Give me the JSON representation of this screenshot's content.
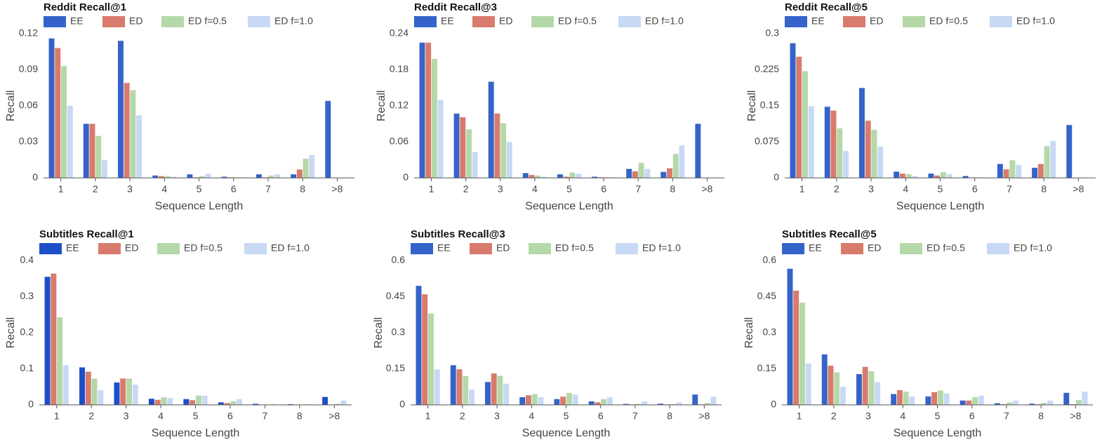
{
  "chart_data": [
    {
      "type": "bar",
      "title": "Reddit Recall@1",
      "xlabel": "Sequence Length",
      "ylabel": "Recall",
      "ylim": [
        0,
        0.12
      ],
      "yticks": [
        "0",
        "0.03",
        "0.06",
        "0.09",
        "0.12"
      ],
      "categories": [
        "1",
        "2",
        "3",
        "4",
        "5",
        "6",
        "7",
        "8",
        ">8"
      ],
      "legend": "top",
      "series": [
        {
          "name": "EE",
          "color": "#3563c9",
          "values": [
            0.116,
            0.045,
            0.114,
            0.002,
            0.003,
            0.001,
            0.003,
            0.003,
            0.064
          ]
        },
        {
          "name": "ED",
          "color": "#d97b6c",
          "values": [
            0.108,
            0.045,
            0.079,
            0.0015,
            0.0005,
            0.0005,
            0.0005,
            0.007,
            0
          ]
        },
        {
          "name": "ED f=0.5",
          "color": "#b5d8a8",
          "values": [
            0.093,
            0.035,
            0.073,
            0.0015,
            0.0015,
            0.0005,
            0.002,
            0.016,
            0
          ]
        },
        {
          "name": "ED f=1.0",
          "color": "#c8d9f5",
          "values": [
            0.06,
            0.015,
            0.052,
            0.001,
            0.0035,
            0.0005,
            0.003,
            0.019,
            0
          ]
        }
      ]
    },
    {
      "type": "bar",
      "title": "Reddit Recall@3",
      "xlabel": "Sequence Length",
      "ylabel": "Recall",
      "ylim": [
        0,
        0.24
      ],
      "yticks": [
        "0",
        "0.06",
        "0.12",
        "0.18",
        "0.24"
      ],
      "categories": [
        "1",
        "2",
        "3",
        "4",
        "5",
        "6",
        "7",
        "8",
        ">8"
      ],
      "legend": "top",
      "series": [
        {
          "name": "EE",
          "color": "#3563c9",
          "values": [
            0.225,
            0.107,
            0.16,
            0.008,
            0.006,
            0.002,
            0.015,
            0.01,
            0.09
          ]
        },
        {
          "name": "ED",
          "color": "#d97b6c",
          "values": [
            0.225,
            0.101,
            0.107,
            0.005,
            0.002,
            0.001,
            0.011,
            0.016,
            0
          ]
        },
        {
          "name": "ED f=0.5",
          "color": "#b5d8a8",
          "values": [
            0.198,
            0.081,
            0.091,
            0.004,
            0.009,
            0.001,
            0.025,
            0.04,
            0
          ]
        },
        {
          "name": "ED f=1.0",
          "color": "#c8d9f5",
          "values": [
            0.13,
            0.043,
            0.06,
            0.002,
            0.007,
            0.001,
            0.015,
            0.054,
            0
          ]
        }
      ]
    },
    {
      "type": "bar",
      "title": "Reddit Recall@5",
      "xlabel": "Sequence Length",
      "ylabel": "Recall",
      "ylim": [
        0,
        0.3
      ],
      "yticks": [
        "0",
        "0.075",
        "0.15",
        "0.225",
        "0.3"
      ],
      "categories": [
        "1",
        "2",
        "3",
        "4",
        "5",
        "6",
        "7",
        "8",
        ">8"
      ],
      "legend": "top",
      "series": [
        {
          "name": "EE",
          "color": "#3563c9",
          "values": [
            0.28,
            0.148,
            0.187,
            0.013,
            0.009,
            0.004,
            0.029,
            0.021,
            0.11
          ]
        },
        {
          "name": "ED",
          "color": "#d97b6c",
          "values": [
            0.252,
            0.14,
            0.119,
            0.009,
            0.005,
            0.001,
            0.018,
            0.029,
            0
          ]
        },
        {
          "name": "ED f=0.5",
          "color": "#b5d8a8",
          "values": [
            0.222,
            0.103,
            0.1,
            0.008,
            0.012,
            0.001,
            0.037,
            0.066,
            0
          ]
        },
        {
          "name": "ED f=1.0",
          "color": "#c8d9f5",
          "values": [
            0.149,
            0.056,
            0.065,
            0.004,
            0.008,
            0.001,
            0.027,
            0.077,
            0
          ]
        }
      ]
    },
    {
      "type": "bar",
      "title": "Subtitles Recall@1",
      "xlabel": "Sequence Length",
      "ylabel": "Recall",
      "ylim": [
        0,
        0.4
      ],
      "yticks": [
        "0",
        "0.1",
        "0.2",
        "0.3",
        "0.4"
      ],
      "categories": [
        "1",
        "2",
        "3",
        "4",
        "5",
        "6",
        "7",
        "8",
        ">8"
      ],
      "legend": "top",
      "series": [
        {
          "name": "EE",
          "color": "#1d50c8",
          "values": [
            0.355,
            0.104,
            0.062,
            0.017,
            0.016,
            0.007,
            0.003,
            0.002,
            0.022
          ]
        },
        {
          "name": "ED",
          "color": "#d97b6c",
          "values": [
            0.364,
            0.092,
            0.073,
            0.014,
            0.013,
            0.005,
            0.001,
            0.001,
            0.001
          ]
        },
        {
          "name": "ED f=0.5",
          "color": "#b5d8a8",
          "values": [
            0.243,
            0.073,
            0.073,
            0.021,
            0.026,
            0.01,
            0.001,
            0.001,
            0.003
          ]
        },
        {
          "name": "ED f=1.0",
          "color": "#c8d9f5",
          "values": [
            0.11,
            0.041,
            0.056,
            0.019,
            0.025,
            0.016,
            0.002,
            0.002,
            0.012
          ]
        }
      ]
    },
    {
      "type": "bar",
      "title": "Subtitles Recall@3",
      "xlabel": "Sequence Length",
      "ylabel": "Recall",
      "ylim": [
        0,
        0.6
      ],
      "yticks": [
        "0",
        "0.15",
        "0.3",
        "0.45",
        "0.6"
      ],
      "categories": [
        "1",
        "2",
        "3",
        "4",
        "5",
        "6",
        "7",
        "8",
        ">8"
      ],
      "legend": "top",
      "series": [
        {
          "name": "EE",
          "color": "#3563c9",
          "values": [
            0.495,
            0.165,
            0.095,
            0.032,
            0.024,
            0.015,
            0.004,
            0.005,
            0.043
          ]
        },
        {
          "name": "ED",
          "color": "#d97b6c",
          "values": [
            0.46,
            0.148,
            0.131,
            0.04,
            0.034,
            0.011,
            0.002,
            0.002,
            0.002
          ]
        },
        {
          "name": "ED f=0.5",
          "color": "#b5d8a8",
          "values": [
            0.38,
            0.12,
            0.121,
            0.045,
            0.05,
            0.024,
            0.004,
            0.003,
            0.008
          ]
        },
        {
          "name": "ED f=1.0",
          "color": "#c8d9f5",
          "values": [
            0.148,
            0.063,
            0.088,
            0.032,
            0.042,
            0.031,
            0.014,
            0.01,
            0.034
          ]
        }
      ]
    },
    {
      "type": "bar",
      "title": "Subtitles Recall@5",
      "xlabel": "Sequence Length",
      "ylabel": "Recall",
      "ylim": [
        0,
        0.6
      ],
      "yticks": [
        "0",
        "0.15",
        "0.3",
        "0.45",
        "0.6"
      ],
      "categories": [
        "1",
        "2",
        "3",
        "4",
        "5",
        "6",
        "7",
        "8",
        ">8"
      ],
      "legend": "top",
      "series": [
        {
          "name": "EE",
          "color": "#3563c9",
          "values": [
            0.566,
            0.21,
            0.128,
            0.045,
            0.035,
            0.018,
            0.007,
            0.005,
            0.05
          ]
        },
        {
          "name": "ED",
          "color": "#d97b6c",
          "values": [
            0.475,
            0.163,
            0.158,
            0.061,
            0.053,
            0.018,
            0.003,
            0.003,
            0.003
          ]
        },
        {
          "name": "ED f=0.5",
          "color": "#b5d8a8",
          "values": [
            0.425,
            0.135,
            0.14,
            0.055,
            0.06,
            0.032,
            0.01,
            0.008,
            0.02
          ]
        },
        {
          "name": "ED f=1.0",
          "color": "#c8d9f5",
          "values": [
            0.172,
            0.075,
            0.095,
            0.035,
            0.048,
            0.038,
            0.018,
            0.018,
            0.055
          ]
        }
      ]
    }
  ]
}
